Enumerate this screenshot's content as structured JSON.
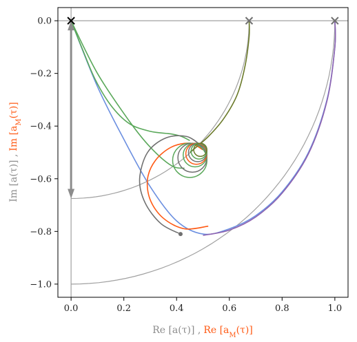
{
  "chart_data": {
    "type": "line",
    "xlabel_parts": [
      {
        "text": "Re [a(τ)] ,",
        "color": "#8c8c8c"
      },
      {
        "text": "Re [a",
        "color": "#ff5a14"
      },
      {
        "text": "M",
        "color": "#ff5a14",
        "sub": true
      },
      {
        "text": "(τ)]",
        "color": "#ff5a14"
      }
    ],
    "ylabel_parts": [
      {
        "text": "Im [a(τ)] ,",
        "color": "#8c8c8c"
      },
      {
        "text": "Im [a",
        "color": "#ff5a14"
      },
      {
        "text": "M",
        "color": "#ff5a14",
        "sub": true
      },
      {
        "text": "(τ)]",
        "color": "#ff5a14"
      }
    ],
    "xlim": [
      -0.05,
      1.05
    ],
    "ylim": [
      -1.05,
      0.05
    ],
    "xticks": [
      {
        "value": 0.0,
        "label": "0.0"
      },
      {
        "value": 0.2,
        "label": "0.2"
      },
      {
        "value": 0.4,
        "label": "0.4"
      },
      {
        "value": 0.6,
        "label": "0.6"
      },
      {
        "value": 0.8,
        "label": "0.8"
      },
      {
        "value": 1.0,
        "label": "1.0"
      }
    ],
    "yticks": [
      {
        "value": 0.0,
        "label": "0.0"
      },
      {
        "value": -0.2,
        "label": "−0.2"
      },
      {
        "value": -0.4,
        "label": "−0.4"
      },
      {
        "value": -0.6,
        "label": "−0.6"
      },
      {
        "value": -0.8,
        "label": "−0.8"
      },
      {
        "value": -1.0,
        "label": "−1.0"
      }
    ],
    "grid": false,
    "colors": {
      "guide": "#a0a0a0",
      "gray_spiral": "#707070",
      "orange": "#ff5a14",
      "green": "#5aa85a",
      "blue": "#6b8fe0",
      "purple": "#8e63b0",
      "olive": "#6b7a2a",
      "arrow": "#8c8c8c"
    },
    "markers": [
      {
        "x": 0.0,
        "y": 0.0,
        "symbol": "x",
        "color": "#000000"
      },
      {
        "x": 0.675,
        "y": 0.0,
        "symbol": "x",
        "color": "#707070"
      },
      {
        "x": 1.0,
        "y": 0.0,
        "symbol": "x",
        "color": "#707070"
      },
      {
        "x": 0.415,
        "y": -0.81,
        "symbol": "dot",
        "color": "#707070"
      }
    ],
    "guides": [
      {
        "kind": "hline",
        "y": 0.0
      },
      {
        "kind": "vline",
        "x": 0.0
      },
      {
        "kind": "arc",
        "cx": 0.0,
        "cy": 0.0,
        "r": 1.0,
        "from_deg": -90,
        "to_deg": 0
      },
      {
        "kind": "arc",
        "cx": 0.0,
        "cy": 0.0,
        "r": 0.675,
        "from_deg": -90,
        "to_deg": 0
      }
    ],
    "arrow": {
      "x": 0.0,
      "from_y": 0.0,
      "to_y": -0.675
    },
    "series": [
      {
        "key": "blue_outer",
        "color": "#6b8fe0",
        "points": [
          [
            0.0,
            0.0
          ],
          [
            0.1,
            -0.25
          ],
          [
            0.2,
            -0.45
          ],
          [
            0.3,
            -0.63
          ],
          [
            0.4,
            -0.76
          ],
          [
            0.5,
            -0.81
          ],
          [
            0.6,
            -0.79
          ],
          [
            0.7,
            -0.74
          ],
          [
            0.8,
            -0.65
          ],
          [
            0.9,
            -0.5
          ],
          [
            0.97,
            -0.3
          ],
          [
            1.0,
            -0.1
          ],
          [
            1.0,
            0.0
          ]
        ]
      },
      {
        "key": "purple_outer",
        "color": "#8e63b0",
        "points": [
          [
            0.5,
            -0.815
          ],
          [
            0.6,
            -0.795
          ],
          [
            0.7,
            -0.745
          ],
          [
            0.8,
            -0.655
          ],
          [
            0.9,
            -0.505
          ],
          [
            0.97,
            -0.305
          ],
          [
            1.0,
            -0.1
          ],
          [
            1.0,
            0.0
          ]
        ]
      },
      {
        "key": "green_top",
        "color": "#5aa85a",
        "points": [
          [
            0.0,
            0.0
          ],
          [
            0.04,
            -0.1
          ],
          [
            0.09,
            -0.22
          ],
          [
            0.15,
            -0.32
          ],
          [
            0.22,
            -0.39
          ],
          [
            0.3,
            -0.42
          ],
          [
            0.38,
            -0.43
          ],
          [
            0.42,
            -0.44
          ],
          [
            0.45,
            -0.455
          ]
        ]
      },
      {
        "key": "green_inner",
        "color": "#5aa85a",
        "points": [
          [
            0.0,
            0.0
          ],
          [
            0.1,
            -0.2
          ],
          [
            0.22,
            -0.38
          ],
          [
            0.3,
            -0.48
          ],
          [
            0.38,
            -0.55
          ],
          [
            0.43,
            -0.56
          ]
        ]
      },
      {
        "key": "gray_spiral_1",
        "color": "#707070",
        "points": [
          [
            0.415,
            -0.81
          ],
          [
            0.34,
            -0.77
          ],
          [
            0.28,
            -0.69
          ],
          [
            0.26,
            -0.6
          ],
          [
            0.29,
            -0.5
          ],
          [
            0.36,
            -0.445
          ],
          [
            0.44,
            -0.44
          ],
          [
            0.5,
            -0.48
          ]
        ]
      },
      {
        "key": "orange_spiral_1",
        "color": "#ff5a14",
        "points": [
          [
            0.52,
            -0.78
          ],
          [
            0.43,
            -0.79
          ],
          [
            0.35,
            -0.75
          ],
          [
            0.3,
            -0.68
          ],
          [
            0.29,
            -0.6
          ],
          [
            0.32,
            -0.53
          ],
          [
            0.38,
            -0.48
          ],
          [
            0.45,
            -0.465
          ],
          [
            0.5,
            -0.49
          ]
        ]
      },
      {
        "key": "olive_rise",
        "color": "#6b7a2a",
        "points": [
          [
            0.45,
            -0.5
          ],
          [
            0.52,
            -0.44
          ],
          [
            0.58,
            -0.37
          ],
          [
            0.63,
            -0.28
          ],
          [
            0.66,
            -0.17
          ],
          [
            0.675,
            -0.06
          ],
          [
            0.675,
            0.0
          ]
        ]
      }
    ],
    "loops": [
      {
        "cx": 0.45,
        "cy": -0.53,
        "r": 0.065,
        "color": "#5aa85a"
      },
      {
        "cx": 0.46,
        "cy": -0.52,
        "r": 0.055,
        "color": "#707070"
      },
      {
        "cx": 0.47,
        "cy": -0.51,
        "r": 0.045,
        "color": "#5aa85a"
      },
      {
        "cx": 0.475,
        "cy": -0.505,
        "r": 0.04,
        "color": "#ff5a14"
      },
      {
        "cx": 0.48,
        "cy": -0.5,
        "r": 0.035,
        "color": "#707070"
      },
      {
        "cx": 0.485,
        "cy": -0.495,
        "r": 0.03,
        "color": "#5aa85a"
      },
      {
        "cx": 0.49,
        "cy": -0.49,
        "r": 0.025,
        "color": "#6b7a2a"
      }
    ]
  }
}
